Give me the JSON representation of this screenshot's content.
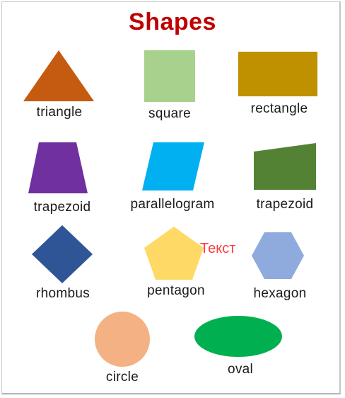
{
  "title": "Shapes",
  "overlay_text": "Текст",
  "shapes": [
    {
      "id": "triangle",
      "label": "triangle",
      "color": "#c55a11"
    },
    {
      "id": "square",
      "label": "square",
      "color": "#a9d18e"
    },
    {
      "id": "rectangle",
      "label": "rectangle",
      "color": "#bf9000"
    },
    {
      "id": "trapezoid-1",
      "label": "trapezoid",
      "color": "#7030a0"
    },
    {
      "id": "parallelogram",
      "label": "parallelogram",
      "color": "#00b0f0"
    },
    {
      "id": "trapezoid-2",
      "label": "trapezoid",
      "color": "#548235"
    },
    {
      "id": "rhombus",
      "label": "rhombus",
      "color": "#2f5597"
    },
    {
      "id": "pentagon",
      "label": "pentagon",
      "color": "#ffd966"
    },
    {
      "id": "hexagon",
      "label": "hexagon",
      "color": "#8faadc"
    },
    {
      "id": "circle",
      "label": "circle",
      "color": "#f4b183"
    },
    {
      "id": "oval",
      "label": "oval",
      "color": "#00b050"
    }
  ]
}
